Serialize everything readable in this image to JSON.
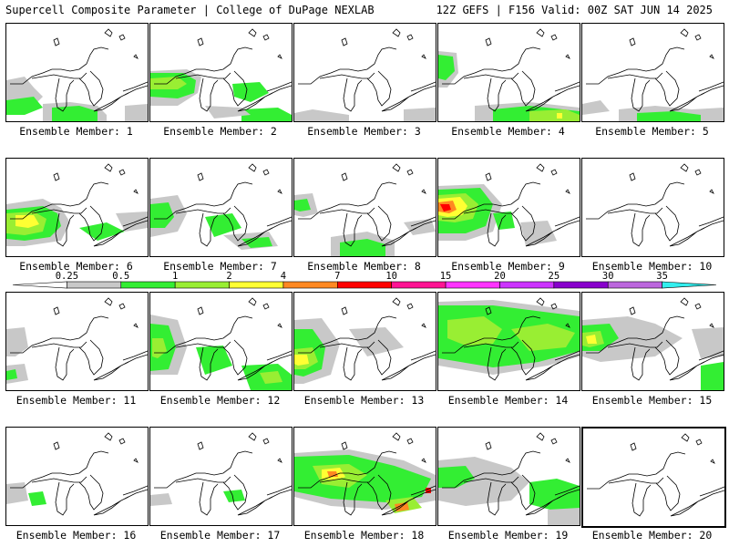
{
  "header": {
    "left": "Supercell Composite Parameter | College of DuPage NEXLAB",
    "right": "12Z GEFS | F156 Valid: 00Z SAT JUN 14 2025"
  },
  "legend": {
    "labels": [
      "0.25",
      "0.5",
      "1",
      "2",
      "4",
      "7",
      "10",
      "15",
      "20",
      "25",
      "30",
      "35"
    ],
    "colors": [
      "#ffffff",
      "#c8c8c8",
      "#33ee33",
      "#99ee33",
      "#ffff33",
      "#ff8822",
      "#ff0000",
      "#ff1493",
      "#ff33ff",
      "#cc33ff",
      "#8800cc",
      "#bb66dd",
      "#33eeee"
    ]
  },
  "panels": [
    {
      "caption": "Ensemble Member: 1"
    },
    {
      "caption": "Ensemble Member: 2"
    },
    {
      "caption": "Ensemble Member: 3"
    },
    {
      "caption": "Ensemble Member: 4"
    },
    {
      "caption": "Ensemble Member: 5"
    },
    {
      "caption": "Ensemble Member: 6"
    },
    {
      "caption": "Ensemble Member: 7"
    },
    {
      "caption": "Ensemble Member: 8"
    },
    {
      "caption": "Ensemble Member: 9"
    },
    {
      "caption": "Ensemble Member: 10"
    },
    {
      "caption": "Ensemble Member: 11"
    },
    {
      "caption": "Ensemble Member: 12"
    },
    {
      "caption": "Ensemble Member: 13"
    },
    {
      "caption": "Ensemble Member: 14"
    },
    {
      "caption": "Ensemble Member: 15"
    },
    {
      "caption": "Ensemble Member: 16"
    },
    {
      "caption": "Ensemble Member: 17"
    },
    {
      "caption": "Ensemble Member: 18"
    },
    {
      "caption": "Ensemble Member: 19"
    },
    {
      "caption": "Ensemble Member: 20"
    }
  ]
}
